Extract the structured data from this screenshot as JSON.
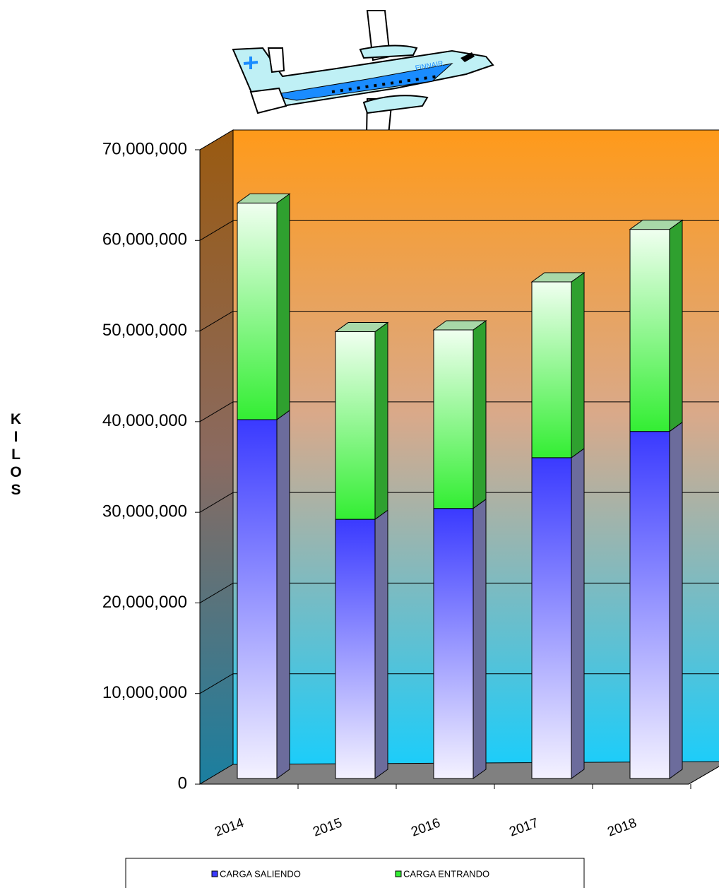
{
  "chart_data": {
    "type": "bar3d_stacked",
    "annotation": "FINNAIR",
    "y_label": "KILOS",
    "categories": [
      "2014",
      "2015",
      "2016",
      "2017",
      "2018"
    ],
    "series": [
      {
        "name": "CARGA SALIENDO",
        "color": "#3a3aff",
        "values": [
          39600000,
          28600000,
          29800000,
          35400000,
          38300000
        ]
      },
      {
        "name": "CARGA ENTRANDO",
        "color": "#33ee33",
        "values": [
          23900000,
          20700000,
          19700000,
          19400000,
          22300000
        ]
      }
    ],
    "ylim": [
      0,
      70000000
    ],
    "yticks": [
      {
        "value": 0,
        "label": "0"
      },
      {
        "value": 10000000,
        "label": "10,000,000"
      },
      {
        "value": 20000000,
        "label": "20,000,000"
      },
      {
        "value": 30000000,
        "label": "30,000,000"
      },
      {
        "value": 40000000,
        "label": "40,000,000"
      },
      {
        "value": 50000000,
        "label": "50,000,000"
      },
      {
        "value": 60000000,
        "label": "60,000,000"
      },
      {
        "value": 70000000,
        "label": "70,000,000"
      }
    ],
    "grid": true
  }
}
